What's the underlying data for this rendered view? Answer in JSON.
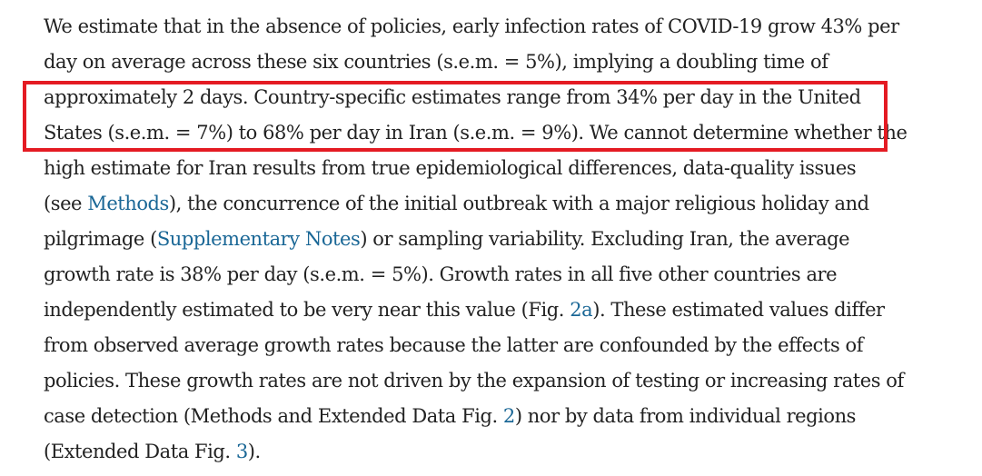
{
  "paragraph": {
    "lines": [
      [
        "We estimate that in the absence of policies, early infection rates of COVID-19 grow 43% per"
      ],
      [
        "day on average across these six countries (s.e.m. = 5%), implying a doubling time of"
      ],
      [
        "approximately 2 days. Country-specific estimates range from 34% per day in the United"
      ],
      [
        "States (s.e.m. = 7%) to 68% per day in Iran (s.e.m. = 9%). We cannot determine whether the"
      ],
      [
        "high estimate for Iran results from true epidemiological differences, data-quality issues"
      ],
      [
        "(see ",
        "Methods",
        "), the concurrence of the initial outbreak with a major religious holiday and"
      ],
      [
        "pilgrimage (",
        "Supplementary Notes",
        ") or sampling variability. Excluding Iran, the average"
      ],
      [
        "growth rate is 38% per day (s.e.m. = 5%). Growth rates in all five other countries are"
      ],
      [
        "independently estimated to be very near this value (Fig. ",
        "2a",
        "). These estimated values differ"
      ],
      [
        "from observed average growth rates because the latter are confounded by the effects of"
      ],
      [
        "policies. These growth rates are not driven by the expansion of testing or increasing rates of"
      ],
      [
        "case detection (Methods and Extended Data Fig. ",
        "2",
        ") nor by data from individual regions"
      ],
      [
        "(Extended Data Fig. ",
        "3",
        ")."
      ]
    ]
  },
  "colors": {
    "text": "#222222",
    "link": "#1a6796",
    "highlight_border": "#e41b23",
    "background": "#ffffff"
  }
}
